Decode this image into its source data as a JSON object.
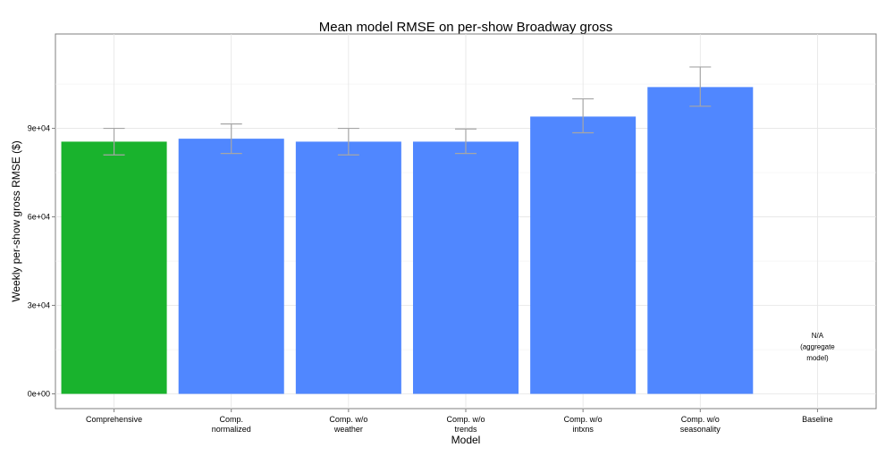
{
  "chart_data": {
    "type": "bar",
    "title": "Mean model RMSE on per-show Broadway gross",
    "xlabel": "Model",
    "ylabel": "Weekly per-show gross RMSE ($)",
    "ylim": [
      -5000,
      122000
    ],
    "yticks": [
      0,
      30000,
      60000,
      90000
    ],
    "ytick_labels": [
      "0e+00",
      "3e+04",
      "6e+04",
      "9e+04"
    ],
    "grid": true,
    "categories": [
      [
        "Comprehensive"
      ],
      [
        "Comp.",
        "normalized"
      ],
      [
        "Comp. w/o",
        "weather"
      ],
      [
        "Comp. w/o",
        "trends"
      ],
      [
        "Comp. w/o",
        "intxns"
      ],
      [
        "Comp. w/o",
        "seasonality"
      ],
      [
        "Baseline"
      ]
    ],
    "values": [
      85500,
      86500,
      85500,
      85500,
      94000,
      104000,
      null
    ],
    "error_low": [
      81000,
      81500,
      81000,
      81500,
      88500,
      97500,
      null
    ],
    "error_high": [
      90000,
      91500,
      90000,
      89800,
      100000,
      110800,
      null
    ],
    "colors": [
      "#19b32d",
      "#5087ff",
      "#5087ff",
      "#5087ff",
      "#5087ff",
      "#5087ff",
      null
    ],
    "error_color": "#a6a6a6",
    "annotation": {
      "category_index": 6,
      "lines": [
        "N/A",
        "(aggregate",
        "model)"
      ]
    }
  }
}
